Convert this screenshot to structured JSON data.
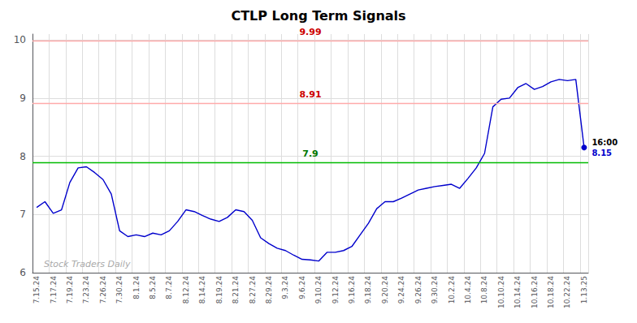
{
  "chart_data": {
    "type": "line",
    "title": "CTLP Long Term Signals",
    "categories": [
      "7.15.24",
      null,
      "7.17.24",
      null,
      "7.19.24",
      null,
      "7.23.24",
      null,
      "7.26.24",
      null,
      "7.30.24",
      null,
      "8.1.24",
      null,
      "8.5.24",
      null,
      "8.7.24",
      null,
      "8.12.24",
      null,
      "8.14.24",
      null,
      "8.19.24",
      null,
      "8.21.24",
      null,
      "8.27.24",
      null,
      "8.29.24",
      null,
      "9.3.24",
      null,
      "9.6.24",
      null,
      "9.10.24",
      null,
      "9.12.24",
      null,
      "9.16.24",
      null,
      "9.18.24",
      null,
      "9.20.24",
      null,
      "9.24.24",
      null,
      "9.26.24",
      null,
      "9.30.24",
      null,
      "10.2.24",
      null,
      "10.4.24",
      null,
      "10.8.24",
      null,
      "10.10.24",
      null,
      "10.14.24",
      null,
      "10.16.24",
      null,
      "10.18.24",
      null,
      "10.22.24",
      null,
      "1.13.25"
    ],
    "values": [
      7.12,
      7.22,
      7.02,
      7.08,
      7.55,
      7.8,
      7.82,
      7.72,
      7.6,
      7.35,
      6.72,
      6.62,
      6.65,
      6.62,
      6.68,
      6.65,
      6.72,
      6.88,
      7.08,
      7.05,
      6.98,
      6.92,
      6.88,
      6.95,
      7.08,
      7.05,
      6.9,
      6.6,
      6.5,
      6.42,
      6.38,
      6.3,
      6.23,
      6.22,
      6.2,
      6.35,
      6.35,
      6.38,
      6.45,
      6.65,
      6.85,
      7.1,
      7.22,
      7.22,
      7.28,
      7.35,
      7.42,
      7.45,
      7.48,
      7.5,
      7.52,
      7.45,
      7.62,
      7.8,
      8.05,
      8.85,
      8.98,
      9.0,
      9.18,
      9.25,
      9.15,
      9.2,
      9.28,
      9.32,
      9.3,
      9.32,
      8.15
    ],
    "color": "#0000cc",
    "ylim": [
      6,
      10.1
    ],
    "yticks": [
      6,
      7,
      8,
      9,
      10
    ],
    "grid": true,
    "hlines": [
      {
        "value": 9.99,
        "color": "#ffaaaa",
        "label_color": "#cc0000"
      },
      {
        "value": 8.91,
        "color": "#ffaaaa",
        "label_color": "#cc0000"
      },
      {
        "value": 7.9,
        "color": "#00bb00",
        "label_color": "#007700"
      }
    ],
    "last_label": "16:00",
    "watermark": "Stock Traders Daily"
  }
}
